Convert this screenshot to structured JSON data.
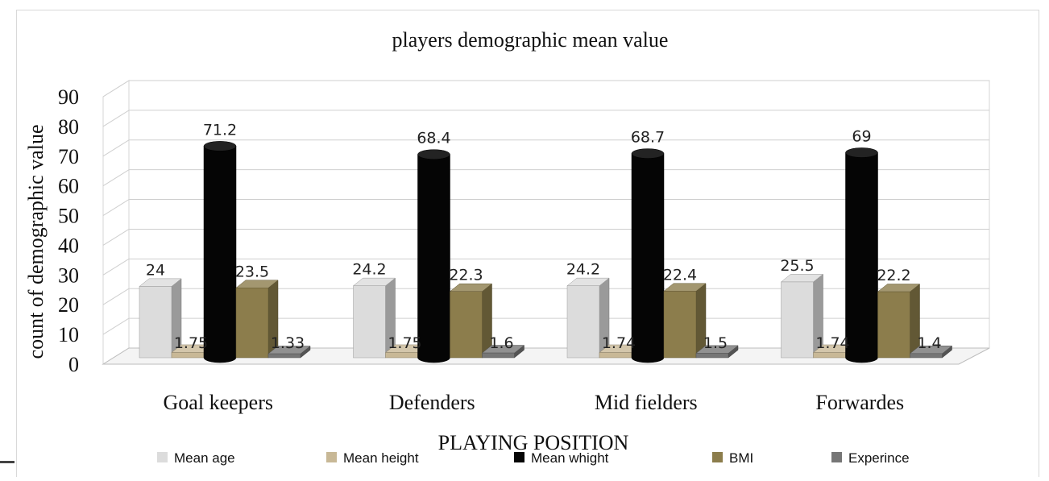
{
  "chart_data": {
    "type": "bar",
    "title": "players demographic mean value",
    "xlabel": "PLAYING POSITION",
    "ylabel": "count of demographic value",
    "ylim": [
      0,
      90
    ],
    "yticks": [
      "0",
      "10",
      "20",
      "30",
      "40",
      "50",
      "60",
      "70",
      "80",
      "90"
    ],
    "categories": [
      "Goal keepers",
      "Defenders",
      "Mid fielders",
      "Forwardes"
    ],
    "series": [
      {
        "name": "Mean age",
        "values": [
          24,
          24.2,
          24.2,
          25.5
        ],
        "labels": [
          "24",
          "24.2",
          "24.2",
          "25.5"
        ],
        "color": "#dcdcdc",
        "shape": "box"
      },
      {
        "name": "Mean height",
        "values": [
          1.75,
          1.75,
          1.74,
          1.74
        ],
        "labels": [
          "1.75",
          "1.75",
          "1.74",
          "1.74"
        ],
        "color": "#c8b896",
        "shape": "box"
      },
      {
        "name": "Mean whight",
        "values": [
          71.2,
          68.4,
          68.7,
          69
        ],
        "labels": [
          "71.2",
          "68.4",
          "68.7",
          "69"
        ],
        "color": "#050505",
        "shape": "cylinder"
      },
      {
        "name": "BMI",
        "values": [
          23.5,
          22.3,
          22.4,
          22.2
        ],
        "labels": [
          "23.5",
          "22.3",
          "22.4",
          "22.2"
        ],
        "color": "#8c7d4c",
        "shape": "box"
      },
      {
        "name": "Experince",
        "values": [
          1.33,
          1.6,
          1.5,
          1.4
        ],
        "labels": [
          "1.33",
          "1.6",
          "1.5",
          "1.4"
        ],
        "color": "#767676",
        "shape": "box"
      }
    ],
    "grid": true,
    "legend": "bottom",
    "style": "3d"
  }
}
